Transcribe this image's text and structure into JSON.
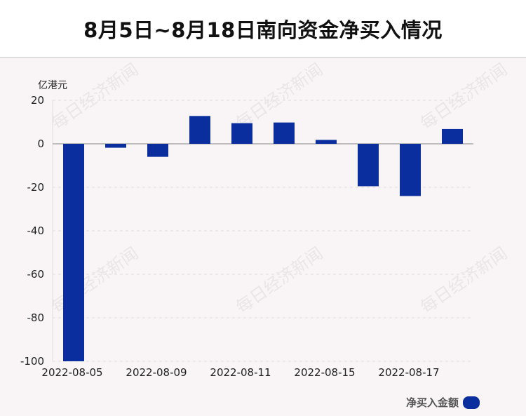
{
  "header": {
    "title": "8月5日~8月18日南向资金净买入情况"
  },
  "watermark_text": "每日经济新闻",
  "colors": {
    "bar": "#0a2e9e",
    "grid": "#dddddd",
    "axis": "#aaaaaa",
    "background": "#f9f5f7"
  },
  "chart_data": {
    "type": "bar",
    "title": "8月5日~8月18日南向资金净买入情况",
    "ylabel": "亿港元",
    "ylim": [
      -100,
      20
    ],
    "yticks": [
      20,
      0,
      -20,
      -40,
      -60,
      -80,
      -100
    ],
    "grid": true,
    "legend_position": "bottom-right",
    "x_tick_labels": [
      "2022-08-05",
      "2022-08-09",
      "2022-08-11",
      "2022-08-15",
      "2022-08-17"
    ],
    "x_tick_label_indices": [
      0,
      2,
      4,
      6,
      8
    ],
    "series": [
      {
        "name": "净买入金额",
        "values": [
          -100,
          -1.8,
          -6,
          12.8,
          9.5,
          9.8,
          1.8,
          -19.5,
          -24,
          6.8
        ]
      }
    ]
  }
}
